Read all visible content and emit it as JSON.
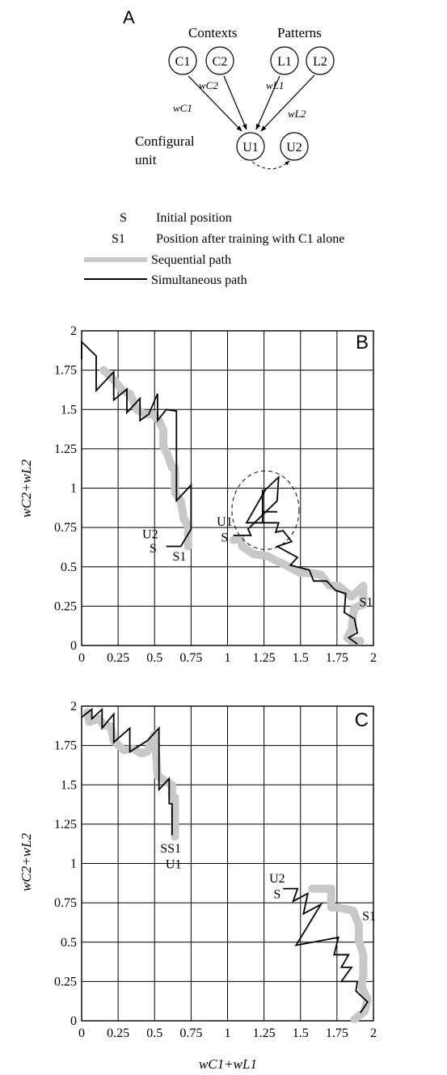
{
  "panel_a": {
    "label": "A",
    "header_contexts": "Contexts",
    "header_patterns": "Patterns",
    "nodes": {
      "c1": "C1",
      "c2": "C2",
      "l1": "L1",
      "l2": "L2",
      "u1": "U1",
      "u2": "U2"
    },
    "weights": {
      "wc2": "wC2",
      "wl1": "wL1",
      "wc1": "wC1",
      "wl2": "wL2"
    },
    "configural_label_line1": "Configural",
    "configural_label_line2": "unit"
  },
  "legend": {
    "s_symbol": "S",
    "s_desc": "Initial position",
    "s1_symbol": "S1",
    "s1_desc": "Position after training with C1 alone",
    "sequential": "Sequential path",
    "simultaneous": "Simultaneous path"
  },
  "colors": {
    "sequential": "#c8c8c8",
    "simultaneous": "#000000",
    "grid": "#000000"
  },
  "axes": {
    "xlabel": "wC1+wL1",
    "ylabel": "wC2+wL2",
    "xticks": [
      "0",
      "0.25",
      "0.5",
      "0.75",
      "1",
      "1.25",
      "1.5",
      "1.75",
      "2"
    ],
    "yticks": [
      "0",
      "0.25",
      "0.5",
      "0.75",
      "1",
      "1.25",
      "1.5",
      "1.75",
      "2"
    ],
    "range": [
      0,
      2
    ]
  },
  "chart_data": [
    {
      "type": "line",
      "panel_label": "B",
      "xlim": [
        0,
        2
      ],
      "ylim": [
        0,
        2
      ],
      "grid": true,
      "series": [
        {
          "name": "Sequential path",
          "style": "thick-gray",
          "points": [
            [
              0.15,
              1.75
            ],
            [
              0.23,
              1.68
            ],
            [
              0.28,
              1.62
            ],
            [
              0.33,
              1.6
            ],
            [
              0.38,
              1.5
            ],
            [
              0.43,
              1.47
            ],
            [
              0.49,
              1.47
            ],
            [
              0.53,
              1.43
            ],
            [
              0.56,
              1.37
            ],
            [
              0.56,
              1.27
            ],
            [
              0.59,
              1.21
            ],
            [
              0.62,
              1.13
            ],
            [
              0.64,
              1.13
            ],
            [
              0.64,
              0.97
            ],
            [
              0.68,
              0.92
            ],
            [
              0.7,
              0.81
            ],
            [
              0.73,
              0.75
            ],
            [
              0.73,
              0.63
            ]
          ]
        },
        {
          "name": "Simultaneous path",
          "style": "thin-black",
          "points": [
            [
              0,
              1.82
            ],
            [
              0,
              1.93
            ],
            [
              0.1,
              1.84
            ],
            [
              0.1,
              1.62
            ],
            [
              0.22,
              1.74
            ],
            [
              0.22,
              1.56
            ],
            [
              0.31,
              1.63
            ],
            [
              0.31,
              1.48
            ],
            [
              0.4,
              1.57
            ],
            [
              0.4,
              1.43
            ],
            [
              0.46,
              1.47
            ],
            [
              0.52,
              1.6
            ],
            [
              0.52,
              1.43
            ],
            [
              0.58,
              1.5
            ],
            [
              0.65,
              1.49
            ],
            [
              0.65,
              0.92
            ],
            [
              0.75,
              1.02
            ],
            [
              0.75,
              0.74
            ],
            [
              0.68,
              0.63
            ],
            [
              0.58,
              0.63
            ]
          ]
        },
        {
          "name": "Sequential path",
          "style": "thick-gray",
          "points": [
            [
              1.04,
              0.67
            ],
            [
              1.09,
              0.68
            ],
            [
              1.1,
              0.63
            ],
            [
              1.18,
              0.58
            ],
            [
              1.27,
              0.57
            ],
            [
              1.33,
              0.54
            ],
            [
              1.4,
              0.51
            ],
            [
              1.5,
              0.46
            ],
            [
              1.57,
              0.46
            ],
            [
              1.64,
              0.45
            ],
            [
              1.7,
              0.38
            ],
            [
              1.76,
              0.38
            ],
            [
              1.85,
              0.31
            ],
            [
              1.93,
              0.38
            ],
            [
              1.93,
              0.26
            ],
            [
              1.87,
              0.24
            ],
            [
              1.86,
              0.19
            ],
            [
              1.85,
              0.1
            ],
            [
              1.82,
              0.05
            ],
            [
              1.85,
              0.03
            ],
            [
              1.91,
              0.03
            ]
          ]
        },
        {
          "name": "Simultaneous path",
          "style": "thin-black",
          "points": [
            [
              1.04,
              0.7
            ],
            [
              1.16,
              0.7
            ],
            [
              1.14,
              0.74
            ],
            [
              1.34,
              0.92
            ],
            [
              1.35,
              1.07
            ],
            [
              1.26,
              0.99
            ],
            [
              1.13,
              0.78
            ],
            [
              1.35,
              0.78
            ],
            [
              1.33,
              0.72
            ],
            [
              1.38,
              0.73
            ],
            [
              1.44,
              0.66
            ],
            [
              1.34,
              0.63
            ],
            [
              1.48,
              0.56
            ],
            [
              1.43,
              0.51
            ],
            [
              1.56,
              0.48
            ],
            [
              1.59,
              0.41
            ],
            [
              1.68,
              0.41
            ],
            [
              1.74,
              0.35
            ],
            [
              1.81,
              0.33
            ],
            [
              1.8,
              0.21
            ],
            [
              1.87,
              0.17
            ],
            [
              1.89,
              0.08
            ],
            [
              1.83,
              0.05
            ],
            [
              1.89,
              0.01
            ]
          ]
        },
        {
          "name": "Simultaneous path",
          "style": "thin-black",
          "points": [
            [
              1.24,
              0.78
            ],
            [
              1.24,
              0.99
            ],
            [
              1.24,
              0.85
            ],
            [
              1.34,
              0.85
            ]
          ]
        }
      ],
      "annotations": [
        {
          "text": "U2",
          "x": 0.47,
          "y": 0.68
        },
        {
          "text": "S",
          "x": 0.49,
          "y": 0.59
        },
        {
          "text": "S1",
          "x": 0.67,
          "y": 0.54
        },
        {
          "text": "U1",
          "x": 0.98,
          "y": 0.76
        },
        {
          "text": "S",
          "x": 0.98,
          "y": 0.66
        },
        {
          "text": "S1",
          "x": 1.95,
          "y": 0.25
        }
      ]
    },
    {
      "type": "line",
      "panel_label": "C",
      "xlim": [
        0,
        2
      ],
      "ylim": [
        0,
        2
      ],
      "grid": true,
      "series": [
        {
          "name": "Sequential path",
          "style": "thick-gray",
          "points": [
            [
              0.04,
              1.96
            ],
            [
              0.05,
              1.9
            ],
            [
              0.12,
              1.92
            ],
            [
              0.15,
              1.88
            ],
            [
              0.2,
              1.87
            ],
            [
              0.22,
              1.78
            ],
            [
              0.29,
              1.72
            ],
            [
              0.35,
              1.73
            ],
            [
              0.41,
              1.7
            ],
            [
              0.45,
              1.71
            ],
            [
              0.5,
              1.82
            ],
            [
              0.52,
              1.56
            ],
            [
              0.58,
              1.52
            ],
            [
              0.62,
              1.5
            ],
            [
              0.62,
              1.42
            ],
            [
              0.64,
              1.42
            ],
            [
              0.64,
              1.17
            ]
          ]
        },
        {
          "name": "Simultaneous path",
          "style": "thin-black",
          "points": [
            [
              0,
              1.93
            ],
            [
              0.07,
              1.98
            ],
            [
              0.07,
              1.92
            ],
            [
              0.14,
              1.98
            ],
            [
              0.14,
              1.86
            ],
            [
              0.22,
              1.95
            ],
            [
              0.22,
              1.77
            ],
            [
              0.33,
              1.86
            ],
            [
              0.33,
              1.71
            ],
            [
              0.45,
              1.78
            ],
            [
              0.53,
              1.86
            ],
            [
              0.53,
              1.47
            ],
            [
              0.6,
              1.54
            ],
            [
              0.6,
              1.38
            ],
            [
              0.62,
              1.38
            ],
            [
              0.62,
              1.18
            ]
          ]
        },
        {
          "name": "Sequential path",
          "style": "thick-gray",
          "points": [
            [
              1.58,
              0.84
            ],
            [
              1.71,
              0.84
            ],
            [
              1.71,
              0.72
            ],
            [
              1.76,
              0.72
            ],
            [
              1.86,
              0.7
            ],
            [
              1.9,
              0.61
            ],
            [
              1.9,
              0.51
            ],
            [
              1.93,
              0.42
            ],
            [
              1.93,
              0.3
            ],
            [
              1.92,
              0.21
            ],
            [
              1.96,
              0.14
            ],
            [
              1.94,
              0.06
            ],
            [
              1.87,
              0.01
            ]
          ]
        },
        {
          "name": "Simultaneous path",
          "style": "thin-black",
          "points": [
            [
              1.38,
              0.84
            ],
            [
              1.48,
              0.84
            ],
            [
              1.45,
              0.76
            ],
            [
              1.55,
              0.81
            ],
            [
              1.52,
              0.68
            ],
            [
              1.64,
              0.74
            ],
            [
              1.47,
              0.48
            ],
            [
              1.76,
              0.53
            ],
            [
              1.73,
              0.42
            ],
            [
              1.83,
              0.42
            ],
            [
              1.78,
              0.34
            ],
            [
              1.85,
              0.34
            ],
            [
              1.78,
              0.25
            ],
            [
              1.89,
              0.25
            ],
            [
              1.88,
              0.19
            ],
            [
              1.96,
              0.12
            ],
            [
              1.91,
              0.05
            ]
          ]
        }
      ],
      "annotations": [
        {
          "text": "SS1",
          "x": 0.61,
          "y": 1.07
        },
        {
          "text": "U1",
          "x": 0.63,
          "y": 0.97
        },
        {
          "text": "U2",
          "x": 1.34,
          "y": 0.88
        },
        {
          "text": "S",
          "x": 1.34,
          "y": 0.78
        },
        {
          "text": "S1",
          "x": 1.97,
          "y": 0.64
        }
      ]
    }
  ]
}
